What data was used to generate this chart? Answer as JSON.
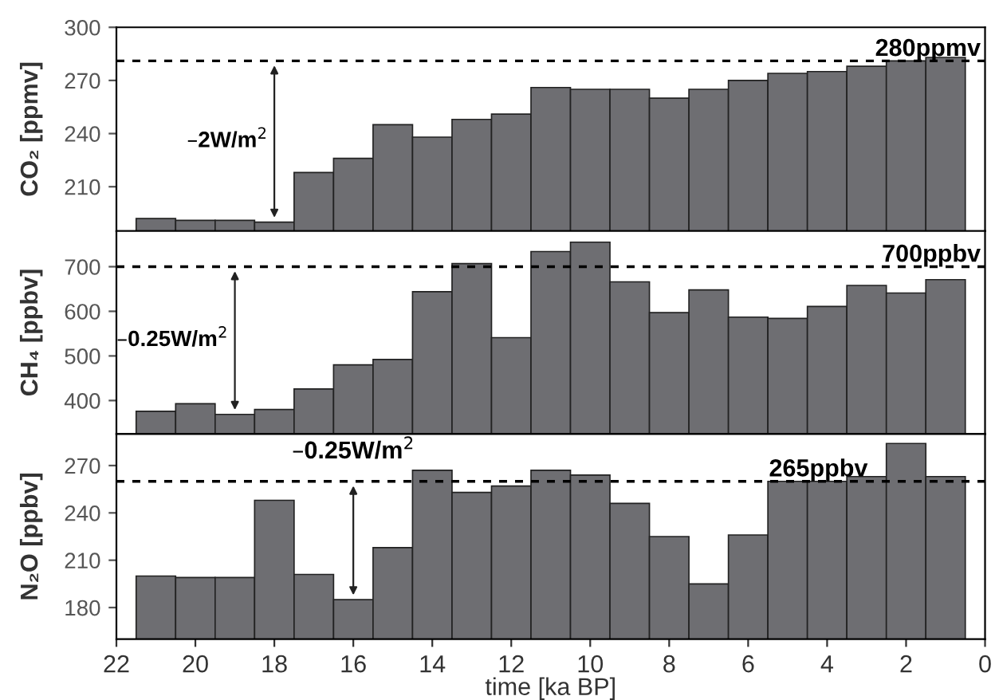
{
  "chart_data": [
    {
      "type": "bar",
      "ylabel": "CO₂ [ppmv]",
      "x": [
        21,
        20,
        19,
        18,
        17,
        16,
        15,
        14,
        13,
        12,
        11,
        10,
        9,
        8,
        7,
        6,
        5,
        4,
        3,
        2,
        1
      ],
      "series": [
        {
          "color": "#6e6e72",
          "values": [
            192,
            191,
            191,
            190,
            218,
            226,
            245,
            238,
            248,
            251,
            266,
            265,
            265,
            260,
            265,
            270,
            274,
            275,
            278,
            281,
            283
          ]
        }
      ],
      "xlim": [
        22,
        0
      ],
      "ylim": [
        185,
        300
      ],
      "yticks": [
        210,
        240,
        270,
        300
      ],
      "tick_labels": "y",
      "grid": false,
      "legend": false,
      "ref_lines": [
        {
          "axis": "y",
          "value": 281,
          "label": "280ppmv",
          "line_style": "dashed",
          "color": "#000000"
        }
      ],
      "annotations": [
        "–2W/m$^{2}$"
      ]
    },
    {
      "type": "bar",
      "ylabel": "CH₄ [ppbv]",
      "x": [
        21,
        20,
        19,
        18,
        17,
        16,
        15,
        14,
        13,
        12,
        11,
        10,
        9,
        8,
        7,
        6,
        5,
        4,
        3,
        2,
        1
      ],
      "series": [
        {
          "color": "#6e6e72",
          "values": [
            376,
            393,
            369,
            380,
            426,
            480,
            492,
            644,
            707,
            541,
            734,
            755,
            666,
            597,
            648,
            587,
            584,
            611,
            658,
            641,
            671
          ]
        }
      ],
      "xlim": [
        22,
        0
      ],
      "ylim": [
        325,
        780
      ],
      "yticks": [
        400,
        500,
        600,
        700
      ],
      "tick_labels": "y",
      "grid": false,
      "legend": false,
      "ref_lines": [
        {
          "axis": "y",
          "value": 700,
          "label": "700ppbv",
          "line_style": "dashed",
          "color": "#000000"
        }
      ],
      "annotations": [
        "–0.25W/m$^{2}$"
      ]
    },
    {
      "type": "bar",
      "ylabel": "N₂O [ppbv]",
      "xlabel": "time [ka BP]",
      "x": [
        21,
        20,
        19,
        18,
        17,
        16,
        15,
        14,
        13,
        12,
        11,
        10,
        9,
        8,
        7,
        6,
        5,
        4,
        3,
        2,
        1
      ],
      "series": [
        {
          "color": "#6e6e72",
          "values": [
            200,
            199,
            199,
            248,
            201,
            185,
            218,
            267,
            253,
            257,
            267,
            264,
            246,
            225,
            195,
            226,
            260,
            260,
            263,
            284,
            263
          ]
        }
      ],
      "xlim": [
        22,
        0
      ],
      "xticks": [
        22,
        20,
        18,
        16,
        14,
        12,
        10,
        8,
        6,
        4,
        2,
        0
      ],
      "ylim": [
        160,
        290
      ],
      "yticks": [
        180,
        210,
        240,
        270
      ],
      "grid": false,
      "legend": false,
      "ref_lines": [
        {
          "axis": "y",
          "value": 260,
          "label": "265ppbv",
          "line_style": "dashed",
          "color": "#000000"
        }
      ],
      "annotations": [
        "–0.25W/m$^{2}$"
      ]
    }
  ]
}
